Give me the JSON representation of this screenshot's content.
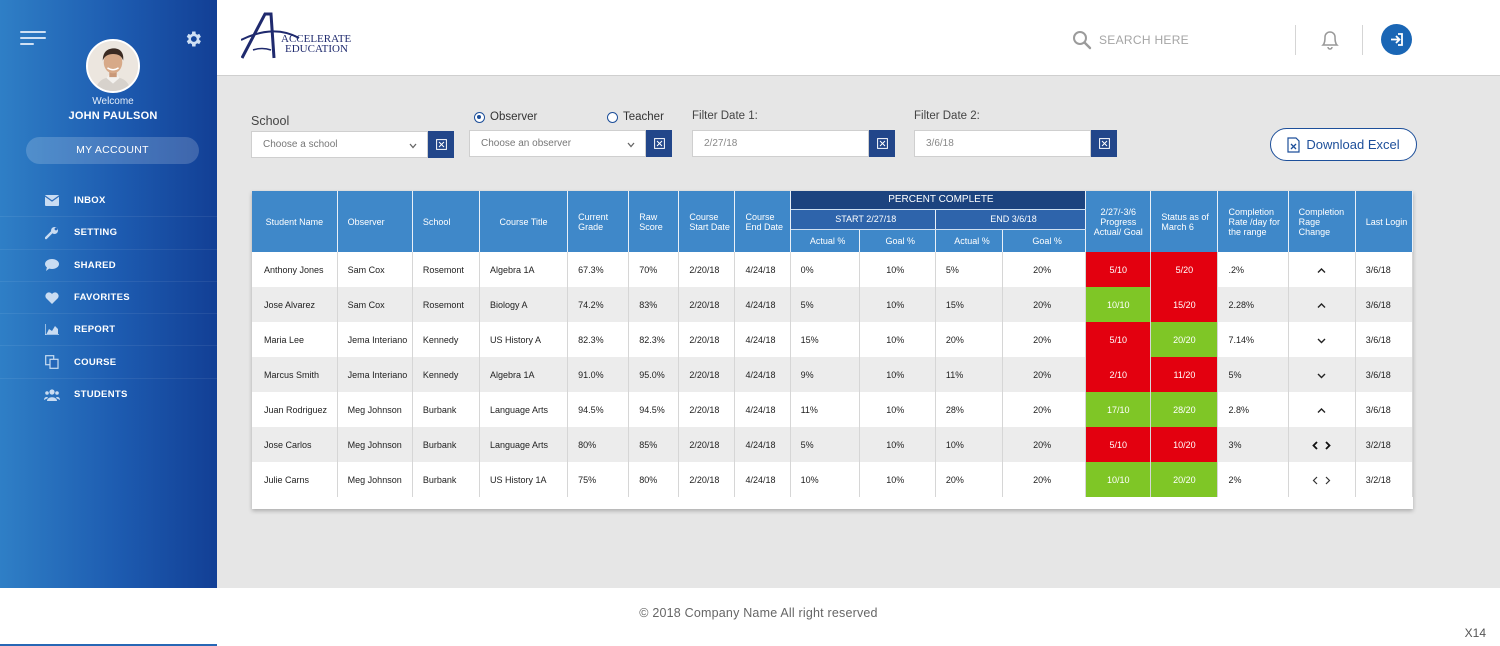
{
  "sidebar": {
    "welcome": "Welcome",
    "user_name": "JOHN PAULSON",
    "account_label": "MY ACCOUNT",
    "items": [
      {
        "label": "INBOX",
        "icon": "envelope-icon"
      },
      {
        "label": "SETTING",
        "icon": "wrench-icon"
      },
      {
        "label": "SHARED",
        "icon": "chat-bubble-icon"
      },
      {
        "label": "FAVORITES",
        "icon": "heart-icon"
      },
      {
        "label": "REPORT",
        "icon": "area-chart-icon"
      },
      {
        "label": "COURSE",
        "icon": "copy-icon"
      },
      {
        "label": "STUDENTS",
        "icon": "users-icon"
      }
    ]
  },
  "header": {
    "logo_line1": "ACCELERATE",
    "logo_line2": "EDUCATION",
    "search_placeholder": "SEARCH HERE"
  },
  "filters": {
    "school_label": "School",
    "school_placeholder": "Choose a school",
    "observer_radio": "Observer",
    "teacher_radio": "Teacher",
    "observer_placeholder": "Choose an observer",
    "date1_label": "Filter Date 1:",
    "date1_value": "2/27/18",
    "date2_label": "Filter Date 2:",
    "date2_value": "3/6/18",
    "download_label": "Download Excel"
  },
  "table": {
    "headers": {
      "student": "Student Name",
      "observer": "Observer",
      "school": "School",
      "course": "Course Title",
      "grade": "Current Grade",
      "raw": "Raw Score",
      "start": "Course Start Date",
      "end": "Course End Date",
      "percent_complete": "PERCENT COMPLETE",
      "start_group": "START 2/27/18",
      "end_group": "END 3/6/18",
      "actual": "Actual %",
      "goal": "Goal %",
      "progress": "2/27/-3/6 Progress Actual/ Goal",
      "status": "Status as of March 6",
      "rate": "Completion Rate /day for the range",
      "change": "Completion Rage Change",
      "login": "Last Login"
    },
    "rows": [
      {
        "student": "Anthony Jones",
        "observer": "Sam Cox",
        "school": "Rosemont",
        "course": "Algebra 1A",
        "grade": "67.3%",
        "raw": "70%",
        "start": "2/20/18",
        "end": "4/24/18",
        "s_actual": "0%",
        "s_goal": "10%",
        "e_actual": "5%",
        "e_goal": "20%",
        "progress": "5/10",
        "progress_color": "red",
        "status": "5/20",
        "status_color": "red",
        "rate": ".2%",
        "change": "up",
        "login": "3/6/18"
      },
      {
        "student": "Jose Alvarez",
        "observer": "Sam Cox",
        "school": "Rosemont",
        "course": "Biology A",
        "grade": "74.2%",
        "raw": "83%",
        "start": "2/20/18",
        "end": "4/24/18",
        "s_actual": "5%",
        "s_goal": "10%",
        "e_actual": "15%",
        "e_goal": "20%",
        "progress": "10/10",
        "progress_color": "green",
        "status": "15/20",
        "status_color": "red",
        "rate": "2.28%",
        "change": "up",
        "login": "3/6/18"
      },
      {
        "student": "Maria Lee",
        "observer": "Jema Interiano",
        "school": "Kennedy",
        "course": "US History A",
        "grade": "82.3%",
        "raw": "82.3%",
        "start": "2/20/18",
        "end": "4/24/18",
        "s_actual": "15%",
        "s_goal": "10%",
        "e_actual": "20%",
        "e_goal": "20%",
        "progress": "5/10",
        "progress_color": "red",
        "status": "20/20",
        "status_color": "green",
        "rate": "7.14%",
        "change": "down",
        "login": "3/6/18"
      },
      {
        "student": "Marcus Smith",
        "observer": "Jema Interiano",
        "school": "Kennedy",
        "course": "Algebra 1A",
        "grade": "91.0%",
        "raw": "95.0%",
        "start": "2/20/18",
        "end": "4/24/18",
        "s_actual": "9%",
        "s_goal": "10%",
        "e_actual": "11%",
        "e_goal": "20%",
        "progress": "2/10",
        "progress_color": "red",
        "status": "11/20",
        "status_color": "red",
        "rate": "5%",
        "change": "down",
        "login": "3/6/18"
      },
      {
        "student": "Juan Rodriguez",
        "observer": "Meg Johnson",
        "school": "Burbank",
        "course": "Language Arts",
        "grade": "94.5%",
        "raw": "94.5%",
        "start": "2/20/18",
        "end": "4/24/18",
        "s_actual": "11%",
        "s_goal": "10%",
        "e_actual": "28%",
        "e_goal": "20%",
        "progress": "17/10",
        "progress_color": "green",
        "status": "28/20",
        "status_color": "green",
        "rate": "2.8%",
        "change": "up",
        "login": "3/6/18"
      },
      {
        "student": "Jose Carlos",
        "observer": "Meg Johnson",
        "school": "Burbank",
        "course": "Language Arts",
        "grade": "80%",
        "raw": "85%",
        "start": "2/20/18",
        "end": "4/24/18",
        "s_actual": "5%",
        "s_goal": "10%",
        "e_actual": "10%",
        "e_goal": "20%",
        "progress": "5/10",
        "progress_color": "red",
        "status": "10/20",
        "status_color": "red",
        "rate": "3%",
        "change": "flat-bold",
        "login": "3/2/18"
      },
      {
        "student": "Julie Carns",
        "observer": "Meg Johnson",
        "school": "Burbank",
        "course": "US History 1A",
        "grade": "75%",
        "raw": "80%",
        "start": "2/20/18",
        "end": "4/24/18",
        "s_actual": "10%",
        "s_goal": "10%",
        "e_actual": "20%",
        "e_goal": "20%",
        "progress": "10/10",
        "progress_color": "green",
        "status": "20/20",
        "status_color": "green",
        "rate": "2%",
        "change": "flat",
        "login": "3/2/18"
      }
    ]
  },
  "footer": {
    "copyright": "© 2018 Company Name  All right reserved",
    "page_id": "X14"
  },
  "colors": {
    "red": "#e3000f",
    "green": "#7fc626",
    "primary": "#1d4f9a"
  }
}
